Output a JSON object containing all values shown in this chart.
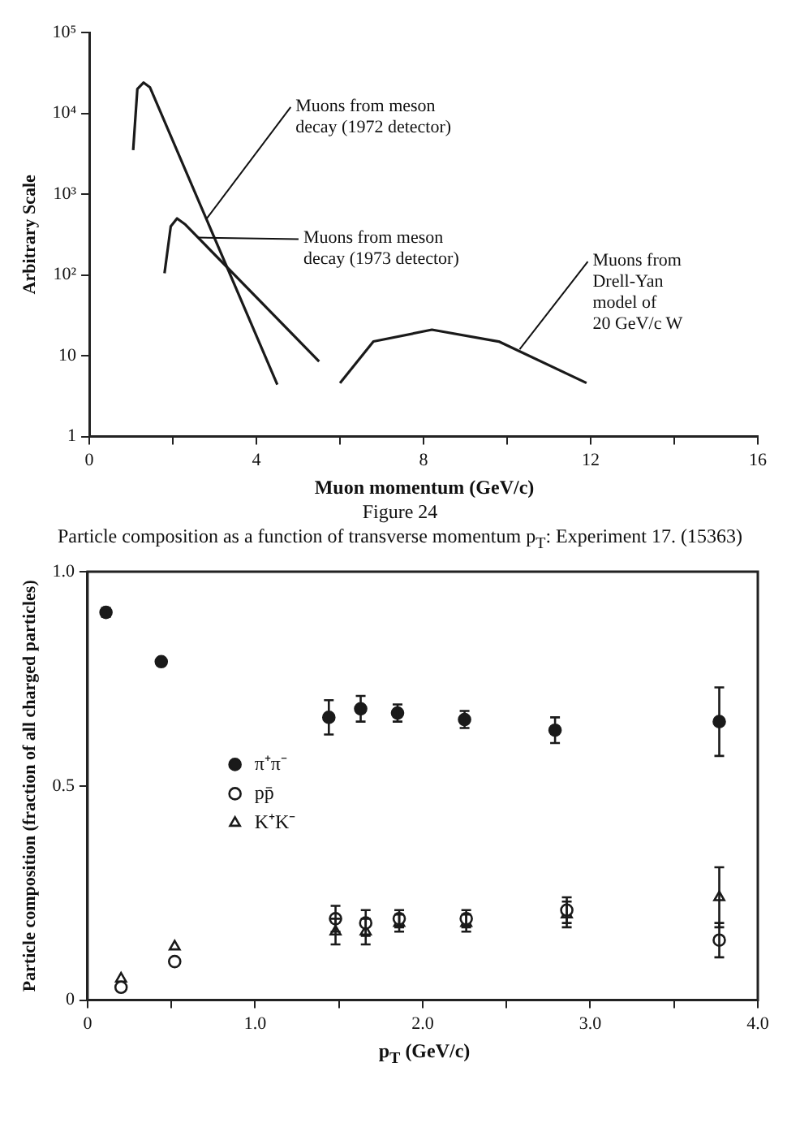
{
  "chart_data": [
    {
      "type": "line",
      "xlabel": "Muon momentum (GeV/c)",
      "ylabel": "Arbitrary Scale",
      "log": "y",
      "grid": false,
      "marker": "none",
      "line_style": "solid",
      "xlim": [
        0,
        16
      ],
      "xticks": [
        0,
        {
          "value": 2,
          "label": null
        },
        4,
        {
          "value": 6,
          "label": null
        },
        8,
        {
          "value": 10,
          "label": null
        },
        12,
        {
          "value": 14,
          "label": null
        },
        16
      ],
      "ylim": [
        1,
        100000
      ],
      "yticks": [
        1,
        10,
        {
          "value": 100,
          "label": "10²"
        },
        {
          "value": 1000,
          "label": "10³"
        },
        {
          "value": 10000,
          "label": "10⁴"
        },
        {
          "value": 100000,
          "label": "10⁵"
        }
      ],
      "series": [
        {
          "color": "#1a1a1a",
          "x": [
            1.05,
            1.15,
            1.3,
            1.45,
            4.5
          ],
          "values": [
            3500,
            20000,
            24000,
            21000,
            4.4
          ]
        },
        {
          "color": "#1a1a1a",
          "x": [
            1.8,
            1.95,
            2.1,
            2.3,
            5.5
          ],
          "values": [
            105,
            400,
            500,
            420,
            8.5
          ]
        },
        {
          "color": "#1a1a1a",
          "x": [
            6.0,
            6.8,
            8.2,
            9.8,
            11.9
          ],
          "values": [
            4.6,
            15,
            21,
            15,
            4.6
          ]
        }
      ],
      "annotations": [
        {
          "text": "Muons from meson\ndecay (1972 detector)",
          "x": 2.8,
          "y": 490
        },
        {
          "text": "Muons from meson\ndecay (1973 detector)",
          "x": 2.6,
          "y": 290
        },
        {
          "text": "Muons from\nDrell-Yan\nmodel of\n20 GeV/c W",
          "x": 10.3,
          "y": 12
        }
      ]
    },
    {
      "type": "scatter",
      "title": "Figure 24",
      "subtitle": "Particle composition as a function of transverse momentum p$_{T}$: Experiment 17. (15363)",
      "xlabel": "p$_{T}$ (GeV/c)",
      "ylabel": "Particle composition (fraction of all charged particles)",
      "grid": false,
      "legend": "left",
      "xlim": [
        0,
        4
      ],
      "xticks": [
        0,
        {
          "value": 0.5,
          "label": null
        },
        {
          "value": 1,
          "label": "1.0"
        },
        {
          "value": 1.5,
          "label": null
        },
        {
          "value": 2,
          "label": "2.0"
        },
        {
          "value": 2.5,
          "label": null
        },
        {
          "value": 3,
          "label": "3.0"
        },
        {
          "value": 3.5,
          "label": null
        },
        {
          "value": 4,
          "label": "4.0"
        }
      ],
      "ylim": [
        0,
        1
      ],
      "yticks": [
        0,
        {
          "value": 0.5,
          "label": "0.5"
        },
        {
          "value": 1,
          "label": "1.0"
        }
      ],
      "series": [
        {
          "name": "π⁺π⁻",
          "color": "#1a1a1a",
          "marker": "circle",
          "x": [
            0.11,
            0.44,
            1.44,
            1.63,
            1.85,
            2.25,
            2.79,
            3.77
          ],
          "values": [
            0.905,
            0.79,
            0.66,
            0.68,
            0.67,
            0.655,
            0.63,
            0.65
          ],
          "errors": [
            0.01,
            null,
            0.04,
            0.03,
            0.02,
            0.02,
            0.03,
            0.08
          ]
        },
        {
          "name": "pp̄",
          "color": "#1a1a1a",
          "marker": "circle",
          "x": [
            0.2,
            0.52,
            1.48,
            1.66,
            1.86,
            2.26,
            2.86,
            3.77
          ],
          "values": [
            0.03,
            0.09,
            0.19,
            0.18,
            0.19,
            0.19,
            0.21,
            0.14
          ],
          "errors": [
            null,
            null,
            0.03,
            0.03,
            0.02,
            0.02,
            0.03,
            0.04
          ]
        },
        {
          "name": "K⁺K⁻",
          "color": "#1a1a1a",
          "marker": "triangle",
          "x": [
            0.2,
            0.52,
            1.48,
            1.66,
            1.86,
            2.26,
            2.86,
            3.77
          ],
          "values": [
            0.05,
            0.125,
            0.16,
            0.16,
            0.18,
            0.18,
            0.2,
            0.24
          ],
          "errors": [
            null,
            null,
            0.03,
            0.03,
            0.02,
            0.02,
            0.03,
            0.07
          ]
        }
      ]
    }
  ]
}
